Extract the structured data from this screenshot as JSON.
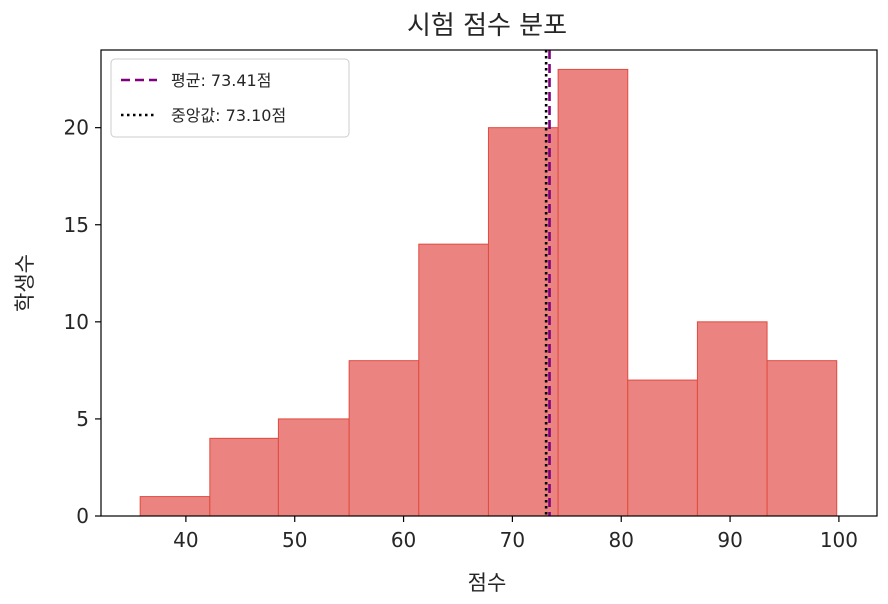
{
  "chart_data": {
    "type": "bar",
    "title": "시험 점수 분포",
    "xlabel": "점수",
    "ylabel": "학생수",
    "xlim": [
      32.2,
      103.5
    ],
    "ylim": [
      0,
      24
    ],
    "xticks": [
      40,
      50,
      60,
      70,
      80,
      90,
      100
    ],
    "yticks": [
      0,
      5,
      10,
      15,
      20
    ],
    "bin_edges": [
      35.8,
      42.2,
      48.5,
      55.0,
      61.4,
      67.8,
      74.2,
      80.6,
      87.0,
      93.4,
      99.8
    ],
    "values": [
      1,
      4,
      5,
      8,
      14,
      20,
      23,
      7,
      10,
      8
    ],
    "bar_color": "#eb8380",
    "bar_edge_color": "#e04b3f",
    "grid": false,
    "reference_lines": [
      {
        "label": "평균: 73.41점",
        "x": 73.41,
        "style": "dashed",
        "color": "#800080"
      },
      {
        "label": "중앙값: 73.10점",
        "x": 73.1,
        "style": "dotted",
        "color": "#000000"
      }
    ],
    "legend_position": "top-left"
  }
}
